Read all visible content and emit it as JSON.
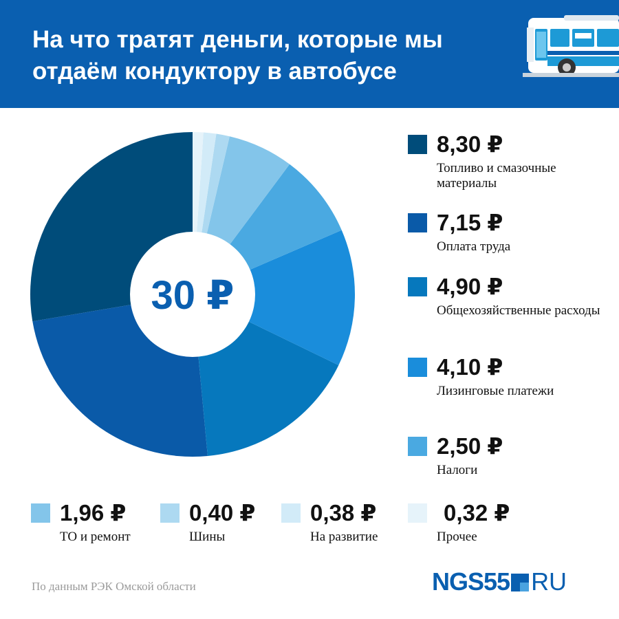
{
  "title": "На что тратят деньги, которые мы отдаём кондуктору в автобусе",
  "source": "По данным РЭК Омской области",
  "logo": {
    "main": "NGS55",
    "suffix": "RU"
  },
  "chart_data": {
    "type": "pie",
    "center_label": "30 ₽",
    "total": 30,
    "currency": "₽",
    "slices": [
      {
        "value": 8.3,
        "display": "8,30 ₽",
        "label": "Топливо и смазочные материалы",
        "color": "#004c7a"
      },
      {
        "value": 7.15,
        "display": "7,15 ₽",
        "label": "Оплата труда",
        "color": "#0a5aa8"
      },
      {
        "value": 4.9,
        "display": "4,90 ₽",
        "label": "Общехозяйственные расходы",
        "color": "#0678bd"
      },
      {
        "value": 4.1,
        "display": "4,10 ₽",
        "label": "Лизинговые платежи",
        "color": "#1a8ddb"
      },
      {
        "value": 2.5,
        "display": "2,50 ₽",
        "label": "Налоги",
        "color": "#4aa9e1"
      },
      {
        "value": 1.96,
        "display": "1,96 ₽",
        "label": "ТО и ремонт",
        "color": "#83c5ea"
      },
      {
        "value": 0.4,
        "display": "0,40 ₽",
        "label": "Шины",
        "color": "#add9f1"
      },
      {
        "value": 0.38,
        "display": "0,38 ₽",
        "label": "На развитие",
        "color": "#d2ebf8"
      },
      {
        "value": 0.32,
        "display": "0,32 ₽",
        "label": "Прочее",
        "color": "#e6f3fa"
      }
    ]
  }
}
